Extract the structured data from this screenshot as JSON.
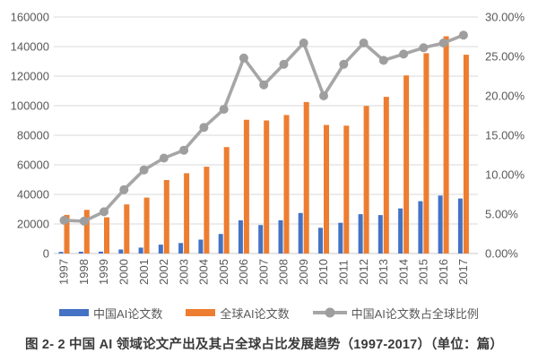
{
  "figure": {
    "caption": "图 2- 2 中国 AI 领域论文产出及其占全球占比发展趋势（1997-2017）（单位：篇）"
  },
  "chart_data": {
    "type": "bar",
    "secondary_type": "line",
    "combo": "clustered bars on left axis + line with circular markers on right axis",
    "categories": [
      "1997",
      "1998",
      "1999",
      "2000",
      "2001",
      "2002",
      "2003",
      "2004",
      "2005",
      "2006",
      "2007",
      "2008",
      "2009",
      "2010",
      "2011",
      "2012",
      "2013",
      "2014",
      "2015",
      "2016",
      "2017"
    ],
    "series": [
      {
        "name": "中国AI论文数",
        "chart": "bar",
        "axis": "left",
        "color": "#4472C4",
        "values": [
          1100,
          1200,
          1300,
          2700,
          4000,
          6000,
          7100,
          9400,
          13200,
          22400,
          19300,
          22500,
          27400,
          17400,
          20800,
          26600,
          26000,
          30500,
          35400,
          39200,
          37200
        ]
      },
      {
        "name": "全球AI论文数",
        "chart": "bar",
        "axis": "left",
        "color": "#ED7D31",
        "values": [
          26100,
          29500,
          24500,
          33200,
          37800,
          49700,
          54300,
          58700,
          72000,
          90500,
          90000,
          93700,
          102500,
          87000,
          86500,
          99800,
          106000,
          120500,
          135500,
          147000,
          134500
        ]
      },
      {
        "name": "中国AI论文数占全球比例",
        "chart": "line",
        "axis": "right",
        "color": "#A6A6A6",
        "marker_color": "#9E9E9E",
        "values": [
          4.2,
          4.1,
          5.3,
          8.1,
          10.6,
          12.1,
          13.1,
          16.0,
          18.3,
          24.8,
          21.4,
          24.0,
          26.7,
          20.0,
          24.0,
          26.7,
          24.5,
          25.3,
          26.1,
          26.7,
          27.7
        ]
      }
    ],
    "left_axis": {
      "min": 0,
      "max": 160000,
      "step": 20000,
      "tick_labels": [
        "0",
        "20000",
        "40000",
        "60000",
        "80000",
        "100000",
        "120000",
        "140000",
        "160000"
      ]
    },
    "right_axis": {
      "min": 0,
      "max": 30,
      "step": 5,
      "tick_labels": [
        "0.00%",
        "5.00%",
        "10.00%",
        "15.00%",
        "20.00%",
        "25.00%",
        "30.00%"
      ]
    },
    "grid": true,
    "grid_color": "#D9D9D9",
    "axis_text_color": "#595959",
    "legend_position": "bottom",
    "title": ""
  }
}
